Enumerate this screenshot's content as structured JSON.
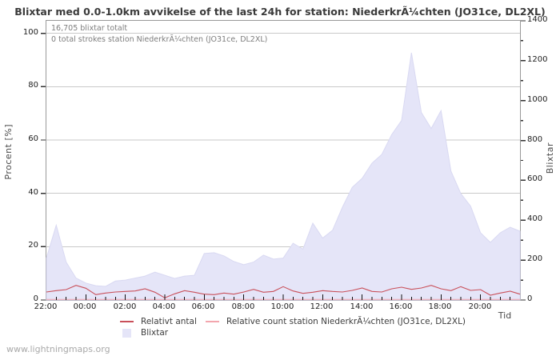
{
  "title": "Blixtar med 0.0-1.0km avvikelse of the last 24h for station: NiederkrÃ¼chten (JO31ce, DL2XL)",
  "annotations": {
    "total": "16,705 blixtar totalt",
    "station": "0 total strokes station NiederkrÃ¼chten (JO31ce, DL2XL)"
  },
  "watermark": "www.lightningmaps.org",
  "colors": {
    "area_fill": "#e5e5f8",
    "area_edge": "#d9d9f2",
    "relative_line": "#c9505a",
    "station_line": "#f3a6ae",
    "grid": "#c9c9c9",
    "border": "#999999",
    "tick": "#333333"
  },
  "legend": {
    "position": "below-plot",
    "items": [
      "Relativt antal",
      "Relative count station NiederkrÃ¼chten (JO31ce, DL2XL)",
      "Blixtar"
    ]
  },
  "chart_data": {
    "type": "area",
    "x": [
      "22:00",
      "22:30",
      "23:00",
      "23:30",
      "00:00",
      "00:30",
      "01:00",
      "01:30",
      "02:00",
      "02:30",
      "03:00",
      "03:30",
      "04:00",
      "04:30",
      "05:00",
      "05:30",
      "06:00",
      "06:30",
      "07:00",
      "07:30",
      "08:00",
      "08:30",
      "09:00",
      "09:30",
      "10:00",
      "10:30",
      "11:00",
      "11:30",
      "12:00",
      "12:30",
      "13:00",
      "13:30",
      "14:00",
      "14:30",
      "15:00",
      "15:30",
      "16:00",
      "16:30",
      "17:00",
      "17:30",
      "18:00",
      "18:30",
      "19:00",
      "19:30",
      "20:00",
      "20:30",
      "21:00",
      "21:30",
      "22:00"
    ],
    "x_axis": {
      "label": "Tid",
      "major_labels": [
        "22:00",
        "00:00",
        "02:00",
        "04:00",
        "06:00",
        "08:00",
        "10:00",
        "12:00",
        "14:00",
        "16:00",
        "18:00",
        "20:00"
      ],
      "minor_step_minutes": 30
    },
    "left_axis": {
      "label": "Procent  [%]",
      "ticks": [
        0,
        20,
        40,
        60,
        80,
        100
      ],
      "range": [
        0,
        104.7
      ]
    },
    "right_axis": {
      "label": "Blixtar",
      "ticks": [
        0,
        200,
        400,
        600,
        800,
        1000,
        1200,
        1400
      ],
      "minor_step": 100,
      "range": [
        0,
        1400
      ]
    },
    "grid": "horizontal-major-left-axis",
    "series": [
      {
        "name": "Blixtar",
        "type": "area",
        "axis": "right",
        "color": "#e5e5f8",
        "values": [
          210,
          375,
          190,
          110,
          85,
          72,
          68,
          95,
          100,
          110,
          120,
          140,
          124,
          108,
          120,
          124,
          233,
          237,
          221,
          193,
          177,
          190,
          225,
          205,
          210,
          285,
          255,
          385,
          310,
          350,
          465,
          565,
          610,
          686,
          730,
          830,
          900,
          1240,
          940,
          860,
          950,
          646,
          534,
          470,
          337,
          289,
          337,
          365,
          345
        ]
      },
      {
        "name": "Relativt antal",
        "type": "line",
        "axis": "left",
        "color": "#c9505a",
        "values": [
          3.0,
          3.5,
          3.9,
          5.5,
          4.4,
          2.0,
          2.6,
          3.0,
          3.2,
          3.4,
          4.2,
          2.9,
          0.8,
          2.3,
          3.5,
          2.9,
          2.2,
          2.0,
          2.6,
          2.2,
          3.0,
          4.0,
          2.9,
          3.2,
          5.0,
          3.4,
          2.5,
          2.9,
          3.5,
          3.2,
          3.0,
          3.6,
          4.5,
          3.2,
          3.0,
          4.2,
          4.8,
          4.0,
          4.5,
          5.5,
          4.2,
          3.5,
          5.0,
          3.6,
          3.9,
          1.8,
          2.6,
          3.3,
          2.2
        ]
      },
      {
        "name": "Relative count station NiederkrÃ¼chten (JO31ce, DL2XL)",
        "type": "line",
        "axis": "left",
        "color": "#f3a6ae",
        "values": [
          0,
          0,
          0,
          0,
          0,
          0,
          0,
          0,
          0,
          0,
          0,
          0,
          0,
          0,
          0,
          0,
          0,
          0,
          0,
          0,
          0,
          0,
          0,
          0,
          0,
          0,
          0,
          0,
          0,
          0,
          0,
          0,
          0,
          0,
          0,
          0,
          0,
          0,
          0,
          0,
          0,
          0,
          0,
          0,
          0,
          0,
          0,
          0,
          0
        ]
      }
    ]
  }
}
